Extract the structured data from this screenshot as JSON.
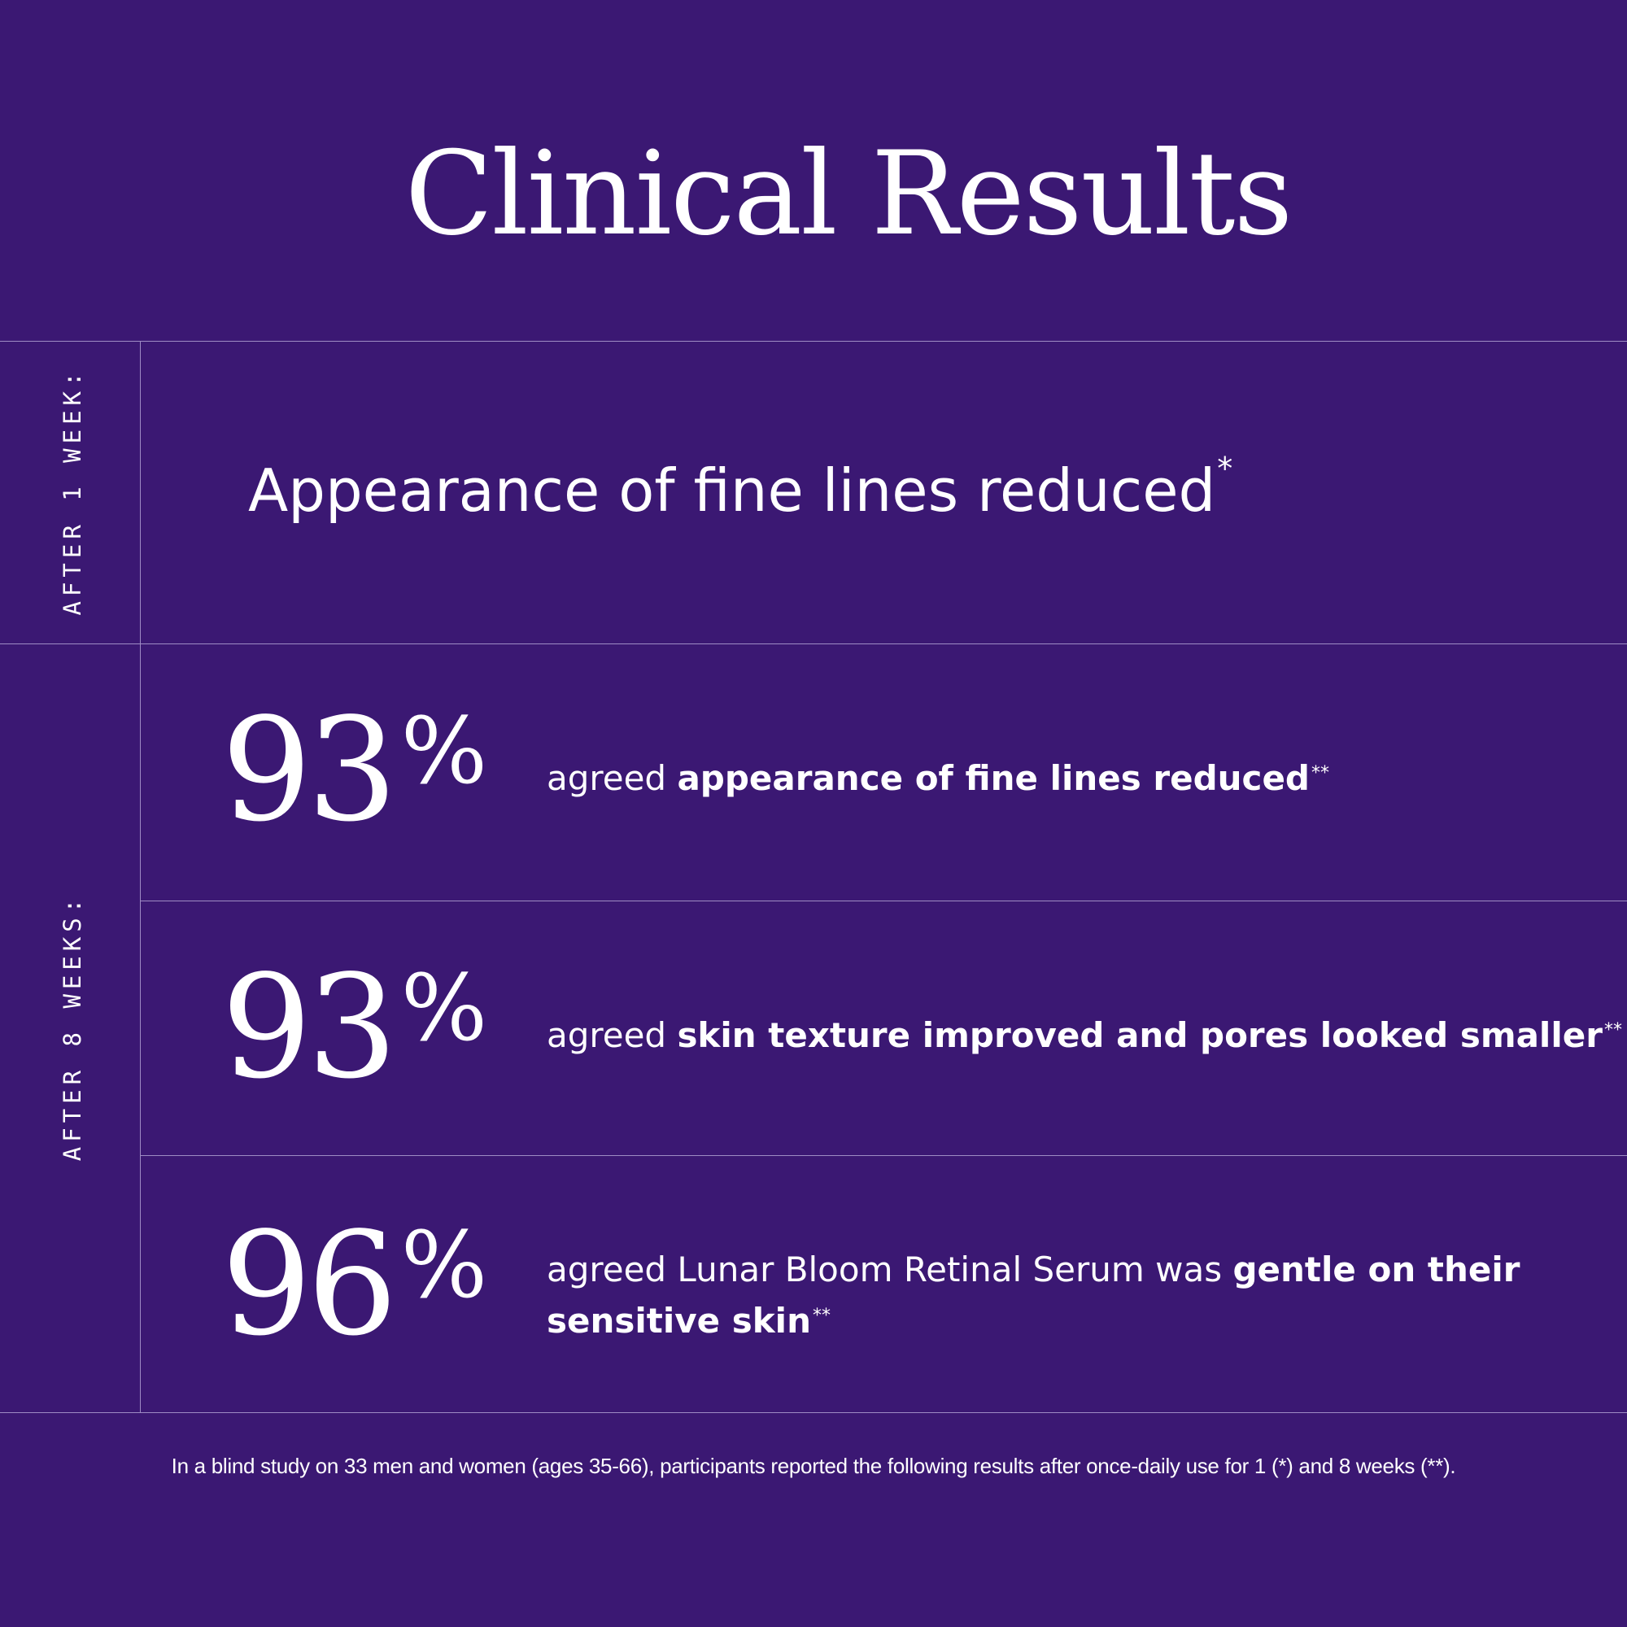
{
  "title": "Clinical Results",
  "sections": {
    "week1_label": "AFTER 1 WEEK:",
    "week8_label": "AFTER 8 WEEKS:"
  },
  "week1_result": {
    "text": "Appearance of fine lines reduced",
    "mark": "*"
  },
  "week8_results": [
    {
      "value": "93",
      "unit": "%",
      "prefix": "agreed ",
      "bold": "appearance of fine lines reduced",
      "mark": "**"
    },
    {
      "value": "93",
      "unit": "%",
      "prefix": "agreed ",
      "bold": "skin texture improved and pores looked smaller",
      "mark": "**"
    },
    {
      "value": "96",
      "unit": "%",
      "prefix": "agreed Lunar Bloom Retinal Serum was ",
      "bold_line1": "gentle on their",
      "bold_line2": "sensitive skin",
      "mark": "**"
    }
  ],
  "footnote": "In a blind study on 33 men and women (ages 35-66), participants reported the following results after once-daily use for 1 (*) and 8 weeks (**).",
  "colors": {
    "background": "#3b1873",
    "text": "#ffffff",
    "divider": "#9e8cc4"
  }
}
